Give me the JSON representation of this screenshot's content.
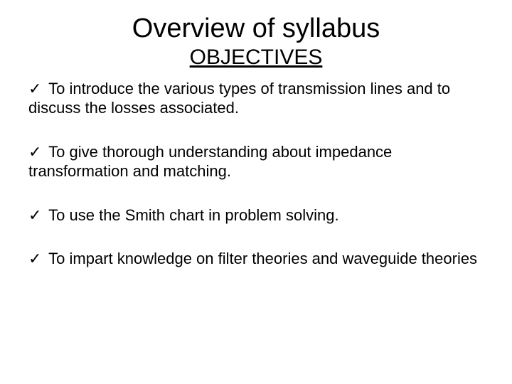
{
  "title": "Overview of syllabus",
  "subtitle": "OBJECTIVES",
  "checkmark": "✓",
  "objectives": [
    "To introduce the various types of transmission lines and to discuss the losses associated.",
    "To give thorough understanding about impedance transformation and matching.",
    "To use the Smith chart in problem solving.",
    "To impart knowledge on filter theories and waveguide theories"
  ]
}
